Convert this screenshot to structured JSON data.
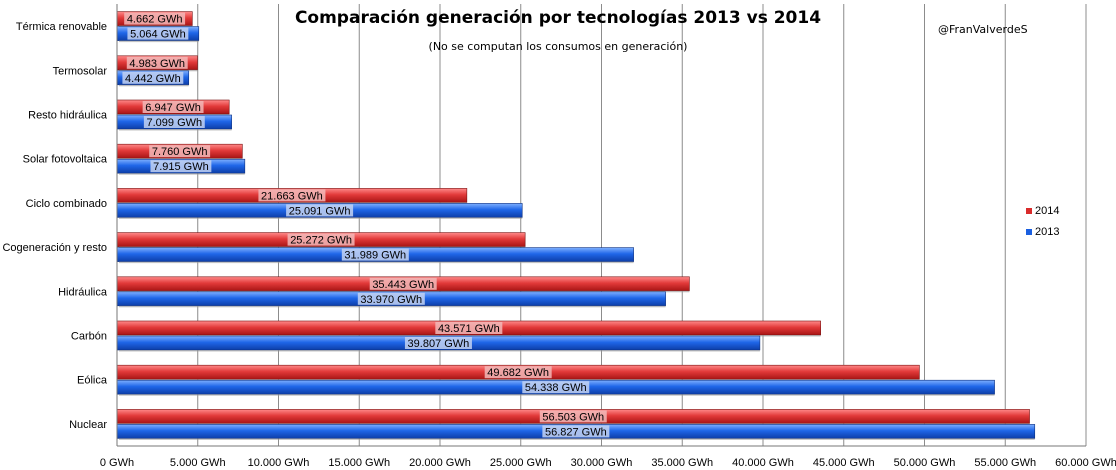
{
  "chart_data": {
    "type": "bar",
    "orientation": "horizontal",
    "title": "Comparación generación por tecnologías 2013 vs 2014",
    "subtitle": "(No se computan los consumos en generación)",
    "credit": "@FranValverdeS",
    "categories": [
      "Térmica renovable",
      "Termosolar",
      "Resto hidráulica",
      "Solar fotovoltaica",
      "Ciclo combinado",
      "Cogeneración y resto",
      "Hidráulica",
      "Carbón",
      "Eólica",
      "Nuclear"
    ],
    "series": [
      {
        "name": "2014",
        "color": "#d92b2b",
        "values": [
          4662,
          4983,
          6947,
          7760,
          21663,
          25272,
          35443,
          43571,
          49682,
          56503
        ],
        "labels": [
          "4.662 GWh",
          "4.983 GWh",
          "6.947 GWh",
          "7.760 GWh",
          "21.663 GWh",
          "25.272 GWh",
          "35.443 GWh",
          "43.571 GWh",
          "49.682 GWh",
          "56.503 GWh"
        ]
      },
      {
        "name": "2013",
        "color": "#1a5fe0",
        "values": [
          5064,
          4442,
          7099,
          7915,
          25091,
          31989,
          33970,
          39807,
          54338,
          56827
        ],
        "labels": [
          "5.064 GWh",
          "4.442 GWh",
          "7.099 GWh",
          "7.915 GWh",
          "25.091 GWh",
          "31.989 GWh",
          "33.970 GWh",
          "39.807 GWh",
          "54.338 GWh",
          "56.827 GWh"
        ]
      }
    ],
    "xlim": [
      0,
      60000
    ],
    "xticks": [
      0,
      5000,
      10000,
      15000,
      20000,
      25000,
      30000,
      35000,
      40000,
      45000,
      50000,
      55000,
      60000
    ],
    "xtick_labels": [
      "0 GWh",
      "5.000 GWh",
      "10.000 GWh",
      "15.000 GWh",
      "20.000 GWh",
      "25.000 GWh",
      "30.000 GWh",
      "35.000 GWh",
      "40.000 GWh",
      "45.000 GWh",
      "50.000 GWh",
      "55.000 GWh",
      "60.000 GWh"
    ],
    "grid": true,
    "legend_position": "right"
  }
}
